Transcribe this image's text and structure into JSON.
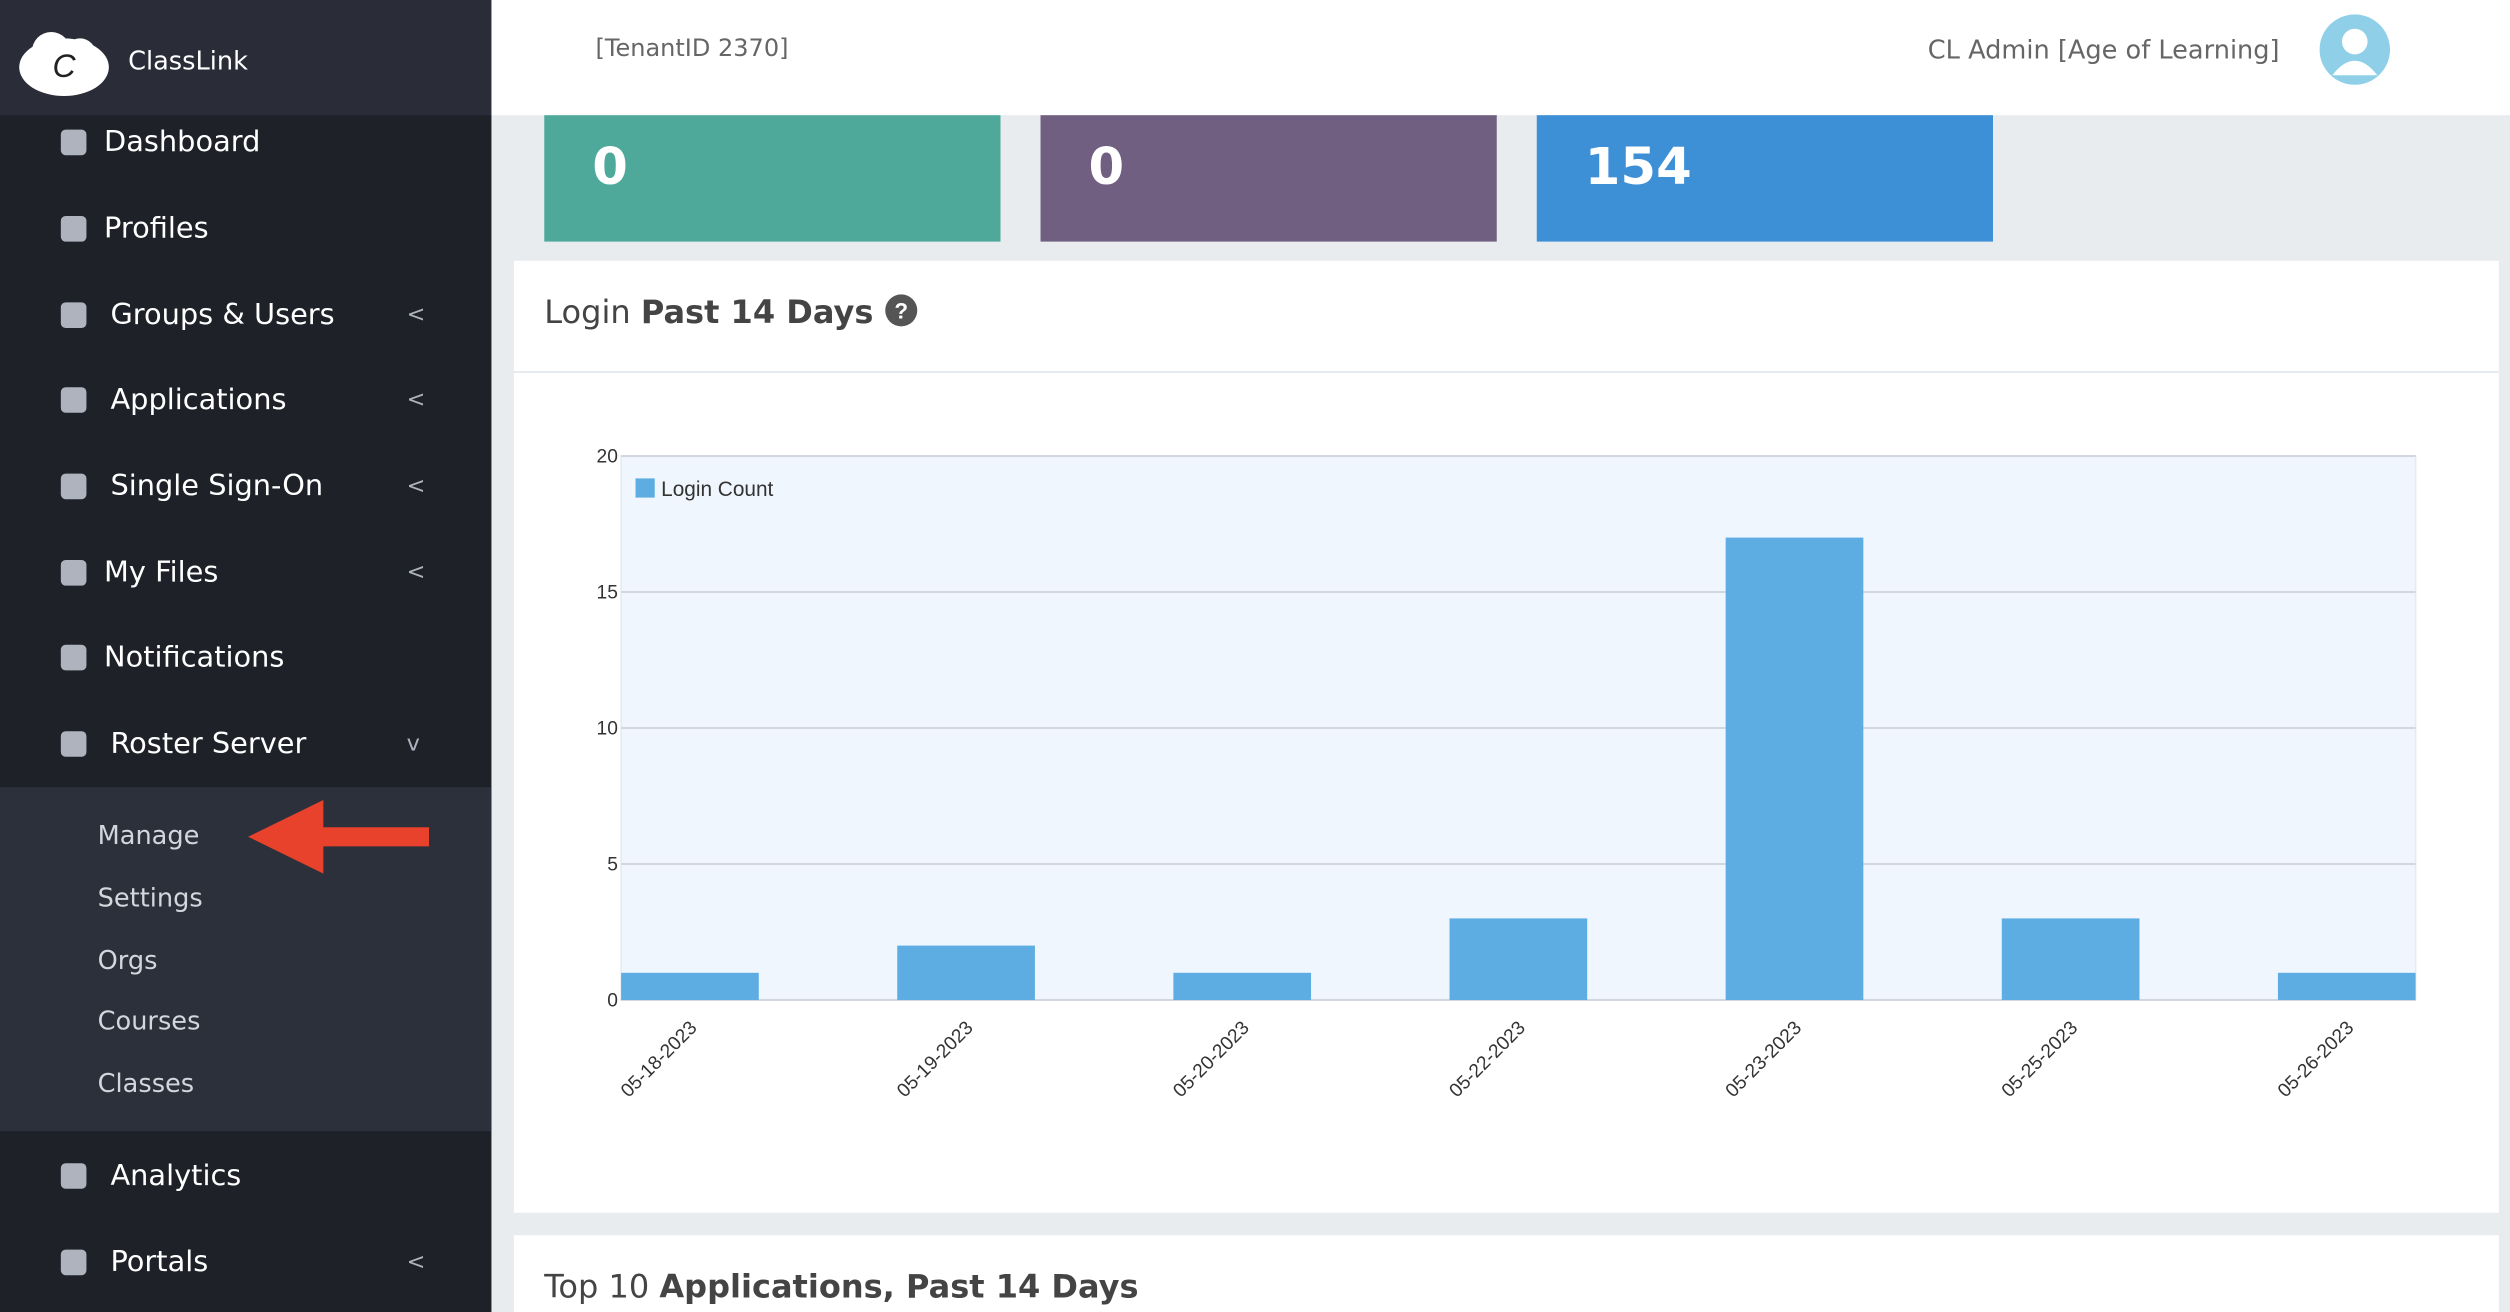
{
  "sidebar": {
    "brand": "ClassLink",
    "menu": [
      "Dashboard",
      "Profiles",
      "Groups & Users",
      "Applications",
      "Single Sign-On",
      "My Files",
      "Notifications",
      "Roster Server"
    ],
    "submenu": [
      "Manage",
      "Settings",
      "Orgs",
      "Courses",
      "Classes"
    ],
    "menu_after": [
      "Analytics",
      "Portals"
    ]
  },
  "header": {
    "tenant": "[TenantID 2370]",
    "user": "CL Admin [Age of Learning]"
  },
  "stats": [
    "0",
    "0",
    "154"
  ],
  "panel_title": {
    "normal": "Login",
    "bold": "Past 14 Days"
  },
  "chart_data": {
    "type": "bar",
    "categories": [
      "05-18-2023",
      "05-19-2023",
      "05-20-2023",
      "05-22-2023",
      "05-23-2023",
      "05-25-2023",
      "05-26-2023"
    ],
    "series": [
      {
        "name": "Login Count",
        "color": "#5dade2",
        "values": [
          1,
          2,
          1,
          3,
          17,
          3,
          1
        ]
      }
    ],
    "ylim": [
      0,
      20
    ],
    "yticks": [
      0,
      5,
      10,
      15,
      20
    ],
    "grid": true
  },
  "panel2_title": {
    "normal": "Top 10",
    "bold": "Applications, Past 14 Days"
  }
}
